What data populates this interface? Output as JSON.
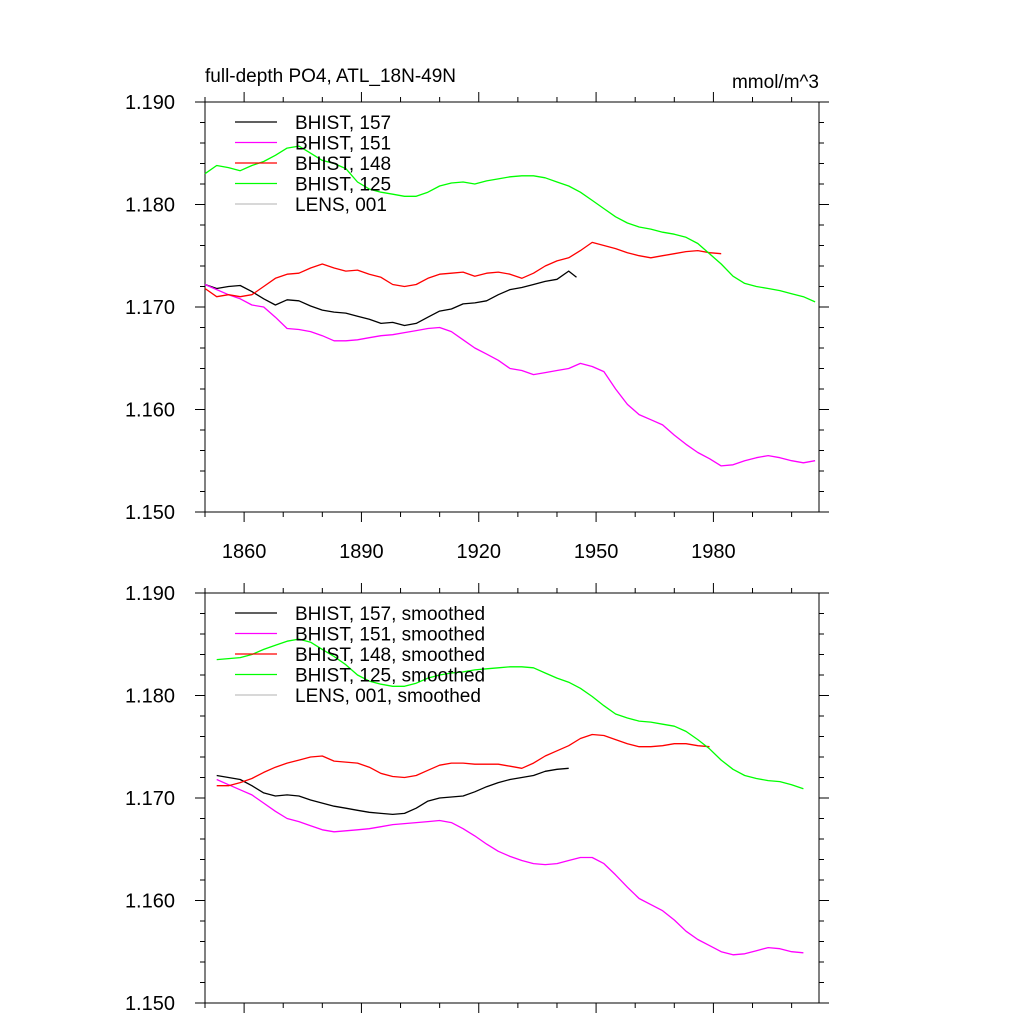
{
  "chart_data": [
    {
      "type": "line",
      "title": "full-depth PO4, ATL_18N-49N",
      "units": "mmol/m^3",
      "xlim": [
        1850,
        2007
      ],
      "ylim": [
        1.15,
        1.19
      ],
      "xticks": [
        1860,
        1890,
        1920,
        1950,
        1980
      ],
      "yticks": [
        1.15,
        1.16,
        1.17,
        1.18,
        1.19
      ],
      "ytick_labels": [
        "1.150",
        "1.160",
        "1.170",
        "1.180",
        "1.190"
      ],
      "grid": false,
      "legend_position": "top-left",
      "legend": [
        "BHIST, 157",
        "BHIST, 151",
        "BHIST, 148",
        "BHIST, 125",
        "LENS, 001"
      ],
      "series": [
        {
          "name": "BHIST, 157",
          "color": "#000000",
          "x": [
            1850,
            1853,
            1856,
            1859,
            1862,
            1865,
            1868,
            1871,
            1874,
            1877,
            1880,
            1883,
            1886,
            1889,
            1892,
            1895,
            1898,
            1901,
            1904,
            1907,
            1910,
            1913,
            1916,
            1919,
            1922,
            1925,
            1928,
            1931,
            1934,
            1937,
            1940,
            1943,
            1945
          ],
          "y": [
            1.1722,
            1.1718,
            1.172,
            1.1721,
            1.1715,
            1.1708,
            1.1702,
            1.1707,
            1.1706,
            1.1701,
            1.1697,
            1.1695,
            1.1694,
            1.1691,
            1.1688,
            1.1684,
            1.1685,
            1.1682,
            1.1684,
            1.169,
            1.1696,
            1.1698,
            1.1703,
            1.1704,
            1.1706,
            1.1712,
            1.1717,
            1.1719,
            1.1722,
            1.1725,
            1.1727,
            1.1735,
            1.1729
          ]
        },
        {
          "name": "BHIST, 151",
          "color": "#ff00ff",
          "x": [
            1850,
            1853,
            1856,
            1859,
            1862,
            1865,
            1868,
            1871,
            1874,
            1877,
            1880,
            1883,
            1886,
            1889,
            1892,
            1895,
            1898,
            1901,
            1904,
            1907,
            1910,
            1913,
            1916,
            1919,
            1922,
            1925,
            1928,
            1931,
            1934,
            1937,
            1940,
            1943,
            1946,
            1949,
            1952,
            1955,
            1958,
            1961,
            1964,
            1967,
            1970,
            1973,
            1976,
            1979,
            1982,
            1985,
            1988,
            1991,
            1994,
            1997,
            2000,
            2003,
            2006
          ],
          "y": [
            1.1722,
            1.1717,
            1.1712,
            1.1708,
            1.1702,
            1.17,
            1.169,
            1.1679,
            1.1678,
            1.1676,
            1.1672,
            1.1667,
            1.1667,
            1.1668,
            1.167,
            1.1672,
            1.1673,
            1.1675,
            1.1677,
            1.1679,
            1.168,
            1.1676,
            1.1668,
            1.166,
            1.1654,
            1.1648,
            1.164,
            1.1638,
            1.1634,
            1.1636,
            1.1638,
            1.164,
            1.1645,
            1.1642,
            1.1637,
            1.162,
            1.1605,
            1.1595,
            1.159,
            1.1585,
            1.1575,
            1.1566,
            1.1558,
            1.1552,
            1.1545,
            1.1546,
            1.155,
            1.1553,
            1.1555,
            1.1553,
            1.155,
            1.1548,
            1.155
          ]
        },
        {
          "name": "BHIST, 148",
          "color": "#ff0000",
          "x": [
            1850,
            1853,
            1856,
            1859,
            1862,
            1865,
            1868,
            1871,
            1874,
            1877,
            1880,
            1883,
            1886,
            1889,
            1892,
            1895,
            1898,
            1901,
            1904,
            1907,
            1910,
            1913,
            1916,
            1919,
            1922,
            1925,
            1928,
            1931,
            1934,
            1937,
            1940,
            1943,
            1946,
            1949,
            1952,
            1955,
            1958,
            1961,
            1964,
            1967,
            1970,
            1973,
            1976,
            1979,
            1982
          ],
          "y": [
            1.1718,
            1.171,
            1.1712,
            1.171,
            1.1712,
            1.172,
            1.1728,
            1.1732,
            1.1733,
            1.1738,
            1.1742,
            1.1738,
            1.1735,
            1.1736,
            1.1732,
            1.1729,
            1.1722,
            1.172,
            1.1722,
            1.1728,
            1.1732,
            1.1733,
            1.1734,
            1.173,
            1.1733,
            1.1734,
            1.1732,
            1.1728,
            1.1733,
            1.174,
            1.1745,
            1.1748,
            1.1755,
            1.1763,
            1.176,
            1.1757,
            1.1753,
            1.175,
            1.1748,
            1.175,
            1.1752,
            1.1754,
            1.1755,
            1.1753,
            1.1752
          ]
        },
        {
          "name": "BHIST, 125",
          "color": "#00ff00",
          "x": [
            1850,
            1853,
            1856,
            1859,
            1862,
            1865,
            1868,
            1871,
            1874,
            1877,
            1880,
            1883,
            1886,
            1889,
            1892,
            1895,
            1898,
            1901,
            1904,
            1907,
            1910,
            1913,
            1916,
            1919,
            1922,
            1925,
            1928,
            1931,
            1934,
            1937,
            1940,
            1943,
            1946,
            1949,
            1952,
            1955,
            1958,
            1961,
            1964,
            1967,
            1970,
            1973,
            1976,
            1979,
            1982,
            1985,
            1988,
            1991,
            1994,
            1997,
            2000,
            2003,
            2006
          ],
          "y": [
            1.183,
            1.1838,
            1.1836,
            1.1833,
            1.1838,
            1.1842,
            1.1848,
            1.1855,
            1.1857,
            1.185,
            1.1843,
            1.184,
            1.1835,
            1.1822,
            1.1815,
            1.1812,
            1.181,
            1.1808,
            1.1808,
            1.1812,
            1.1818,
            1.1821,
            1.1822,
            1.182,
            1.1823,
            1.1825,
            1.1827,
            1.1828,
            1.1828,
            1.1826,
            1.1822,
            1.1818,
            1.1812,
            1.1804,
            1.1796,
            1.1788,
            1.1782,
            1.1778,
            1.1776,
            1.1773,
            1.1771,
            1.1768,
            1.1762,
            1.1752,
            1.1742,
            1.173,
            1.1723,
            1.172,
            1.1718,
            1.1716,
            1.1713,
            1.171,
            1.1705
          ]
        },
        {
          "name": "LENS, 001",
          "color": "#c0c0c0",
          "x": [],
          "y": []
        }
      ]
    },
    {
      "type": "line",
      "title": "",
      "units": "",
      "xlim": [
        1850,
        2007
      ],
      "ylim": [
        1.15,
        1.19
      ],
      "xticks": [
        1860,
        1890,
        1920,
        1950,
        1980
      ],
      "yticks": [
        1.15,
        1.16,
        1.17,
        1.18,
        1.19
      ],
      "ytick_labels": [
        "1.150",
        "1.160",
        "1.170",
        "1.180",
        "1.190"
      ],
      "grid": false,
      "legend_position": "top-left",
      "legend": [
        "BHIST, 157, smoothed",
        "BHIST, 151, smoothed",
        "BHIST, 148, smoothed",
        "BHIST, 125, smoothed",
        "LENS, 001, smoothed"
      ],
      "series": [
        {
          "name": "BHIST, 157, smoothed",
          "color": "#000000",
          "x": [
            1853,
            1856,
            1859,
            1862,
            1865,
            1868,
            1871,
            1874,
            1877,
            1880,
            1883,
            1886,
            1889,
            1892,
            1895,
            1898,
            1901,
            1904,
            1907,
            1910,
            1913,
            1916,
            1919,
            1922,
            1925,
            1928,
            1931,
            1934,
            1937,
            1940,
            1943
          ],
          "y": [
            1.1722,
            1.172,
            1.1718,
            1.1712,
            1.1705,
            1.1702,
            1.1703,
            1.1702,
            1.1698,
            1.1695,
            1.1692,
            1.169,
            1.1688,
            1.1686,
            1.1685,
            1.1684,
            1.1685,
            1.169,
            1.1697,
            1.17,
            1.1701,
            1.1702,
            1.1706,
            1.1711,
            1.1715,
            1.1718,
            1.172,
            1.1722,
            1.1726,
            1.1728,
            1.1729
          ]
        },
        {
          "name": "BHIST, 151, smoothed",
          "color": "#ff00ff",
          "x": [
            1853,
            1856,
            1859,
            1862,
            1865,
            1868,
            1871,
            1874,
            1877,
            1880,
            1883,
            1886,
            1889,
            1892,
            1895,
            1898,
            1901,
            1904,
            1907,
            1910,
            1913,
            1916,
            1919,
            1922,
            1925,
            1928,
            1931,
            1934,
            1937,
            1940,
            1943,
            1946,
            1949,
            1952,
            1955,
            1958,
            1961,
            1964,
            1967,
            1970,
            1973,
            1976,
            1979,
            1982,
            1985,
            1988,
            1991,
            1994,
            1997,
            2000,
            2003
          ],
          "y": [
            1.1718,
            1.1713,
            1.1708,
            1.1703,
            1.1695,
            1.1687,
            1.168,
            1.1677,
            1.1673,
            1.1669,
            1.1667,
            1.1668,
            1.1669,
            1.167,
            1.1672,
            1.1674,
            1.1675,
            1.1676,
            1.1677,
            1.1678,
            1.1676,
            1.167,
            1.1663,
            1.1655,
            1.1648,
            1.1643,
            1.1639,
            1.1636,
            1.1635,
            1.1636,
            1.1639,
            1.1642,
            1.1642,
            1.1636,
            1.1625,
            1.1613,
            1.1602,
            1.1596,
            1.159,
            1.1581,
            1.157,
            1.1562,
            1.1556,
            1.155,
            1.1547,
            1.1548,
            1.1551,
            1.1554,
            1.1553,
            1.155,
            1.1549
          ]
        },
        {
          "name": "BHIST, 148, smoothed",
          "color": "#ff0000",
          "x": [
            1853,
            1856,
            1859,
            1862,
            1865,
            1868,
            1871,
            1874,
            1877,
            1880,
            1883,
            1886,
            1889,
            1892,
            1895,
            1898,
            1901,
            1904,
            1907,
            1910,
            1913,
            1916,
            1919,
            1922,
            1925,
            1928,
            1931,
            1934,
            1937,
            1940,
            1943,
            1946,
            1949,
            1952,
            1955,
            1958,
            1961,
            1964,
            1967,
            1970,
            1973,
            1976,
            1979
          ],
          "y": [
            1.1712,
            1.1712,
            1.1715,
            1.1719,
            1.1725,
            1.173,
            1.1734,
            1.1737,
            1.174,
            1.1741,
            1.1736,
            1.1735,
            1.1734,
            1.173,
            1.1724,
            1.1721,
            1.172,
            1.1722,
            1.1727,
            1.1732,
            1.1734,
            1.1734,
            1.1733,
            1.1733,
            1.1733,
            1.1731,
            1.1729,
            1.1734,
            1.1741,
            1.1746,
            1.1751,
            1.1758,
            1.1762,
            1.1761,
            1.1757,
            1.1753,
            1.175,
            1.175,
            1.1751,
            1.1753,
            1.1753,
            1.1751,
            1.175
          ]
        },
        {
          "name": "BHIST, 125, smoothed",
          "color": "#00ff00",
          "x": [
            1853,
            1856,
            1859,
            1862,
            1865,
            1868,
            1871,
            1874,
            1877,
            1880,
            1883,
            1886,
            1889,
            1892,
            1895,
            1898,
            1901,
            1904,
            1907,
            1910,
            1913,
            1916,
            1919,
            1922,
            1925,
            1928,
            1931,
            1934,
            1937,
            1940,
            1943,
            1946,
            1949,
            1952,
            1955,
            1958,
            1961,
            1964,
            1967,
            1970,
            1973,
            1976,
            1979,
            1982,
            1985,
            1988,
            1991,
            1994,
            1997,
            2000,
            2003
          ],
          "y": [
            1.1835,
            1.1836,
            1.1837,
            1.184,
            1.1845,
            1.1849,
            1.1853,
            1.1855,
            1.1852,
            1.1845,
            1.1838,
            1.183,
            1.182,
            1.1814,
            1.1811,
            1.1809,
            1.1809,
            1.1812,
            1.1817,
            1.182,
            1.1822,
            1.1823,
            1.1825,
            1.1826,
            1.1827,
            1.1828,
            1.1828,
            1.1827,
            1.1822,
            1.1817,
            1.1813,
            1.1807,
            1.1799,
            1.179,
            1.1782,
            1.1778,
            1.1775,
            1.1774,
            1.1772,
            1.177,
            1.1765,
            1.1757,
            1.1748,
            1.1737,
            1.1728,
            1.1722,
            1.1719,
            1.1717,
            1.1716,
            1.1713,
            1.1709
          ]
        },
        {
          "name": "LENS, 001, smoothed",
          "color": "#c0c0c0",
          "x": [],
          "y": []
        }
      ]
    }
  ]
}
